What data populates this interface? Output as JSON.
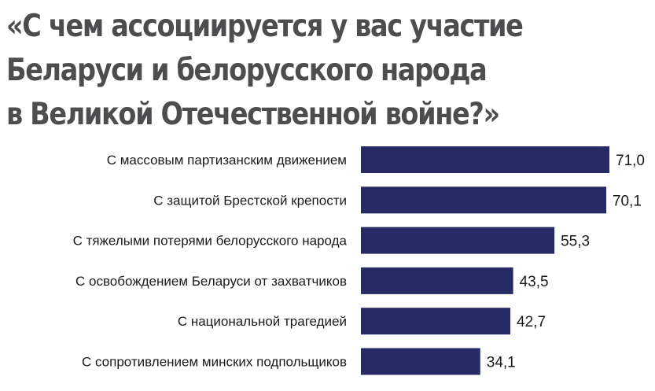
{
  "title_lines": [
    "«С чем ассоциируется у вас участие",
    "Беларуси и белорусского народа",
    "в Великой Отечественной войне?»"
  ],
  "colors": {
    "bar": "#262b66",
    "title": "#4d4d4f",
    "text": "#1a1a1a"
  },
  "chart_data": {
    "type": "bar",
    "orientation": "horizontal",
    "title": "«С чем ассоциируется у вас участие Беларуси и белорусского народа в Великой Отечественной войне?»",
    "categories": [
      "С массовым партизанским движением",
      "С защитой Брестской крепости",
      "С тяжелыми потерями белорусского народа",
      "С освобождением Беларуси от захватчиков",
      "С национальной трагедией",
      "С сопротивлением минских подпольщиков"
    ],
    "values": [
      71.0,
      70.1,
      55.3,
      43.5,
      42.7,
      34.1
    ],
    "value_labels": [
      "71,0",
      "70,1",
      "55,3",
      "43,5",
      "42,7",
      "34,1"
    ],
    "xlim": [
      0,
      71.0
    ],
    "grid": false,
    "legend": "none"
  }
}
